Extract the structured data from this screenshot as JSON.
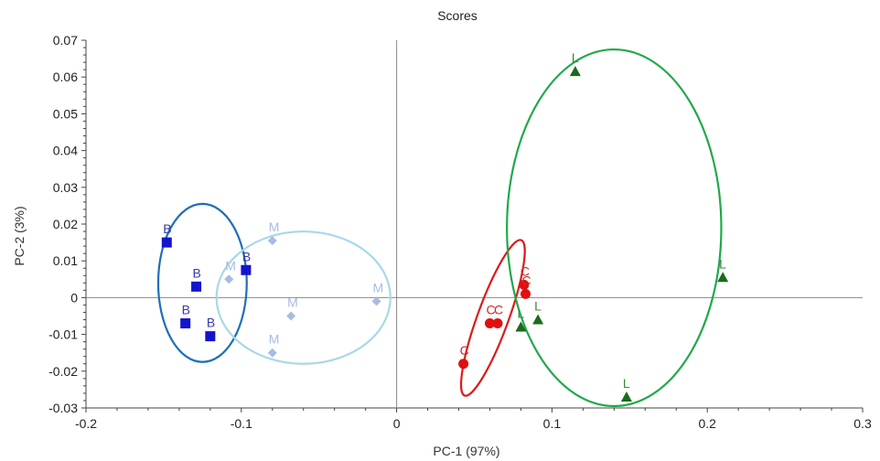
{
  "chart_data": {
    "type": "scatter",
    "title": "Scores",
    "xlabel": "PC-1 (97%)",
    "ylabel": "PC-2 (3%)",
    "xlim": [
      -0.2,
      0.3
    ],
    "ylim": [
      -0.03,
      0.07
    ],
    "x_ticks": [
      "-0.2",
      "-0.1",
      "0",
      "0.1",
      "0.2",
      "0.3"
    ],
    "y_ticks": [
      "-0.03",
      "-0.02",
      "-0.01",
      "0",
      "0.01",
      "0.02",
      "0.03",
      "0.04",
      "0.05",
      "0.06",
      "0.07"
    ],
    "x_tick_values": [
      -0.2,
      -0.1,
      0,
      0.1,
      0.2,
      0.3
    ],
    "y_tick_values": [
      -0.03,
      -0.02,
      -0.01,
      0,
      0.01,
      0.02,
      0.03,
      0.04,
      0.05,
      0.06,
      0.07
    ],
    "zero_lines": true,
    "grid": false,
    "series": [
      {
        "label": "B",
        "color": "#1414cc",
        "label_color": "#3a3aa8",
        "marker": "square",
        "points": [
          {
            "x": -0.148,
            "y": 0.015
          },
          {
            "x": -0.129,
            "y": 0.003
          },
          {
            "x": -0.097,
            "y": 0.0075
          },
          {
            "x": -0.136,
            "y": -0.007
          },
          {
            "x": -0.12,
            "y": -0.0105
          }
        ],
        "ellipse": {
          "cx": -0.125,
          "cy": 0.004,
          "rx": 0.0285,
          "ry": 0.0215,
          "color": "#1f6fb5"
        }
      },
      {
        "label": "M",
        "color": "#a7bce0",
        "label_color": "#a7bce0",
        "marker": "diamond",
        "points": [
          {
            "x": -0.08,
            "y": 0.0155
          },
          {
            "x": -0.108,
            "y": 0.005
          },
          {
            "x": -0.068,
            "y": -0.005
          },
          {
            "x": -0.08,
            "y": -0.015
          },
          {
            "x": -0.013,
            "y": -0.001
          }
        ],
        "ellipse": {
          "cx": -0.06,
          "cy": 0.0,
          "rx": 0.056,
          "ry": 0.018,
          "color": "#a8d8e8"
        }
      },
      {
        "label": "C",
        "color": "#e01010",
        "label_color": "#cc2a2a",
        "marker": "circle",
        "points": [
          {
            "x": 0.043,
            "y": -0.018
          },
          {
            "x": 0.06,
            "y": -0.007
          },
          {
            "x": 0.065,
            "y": -0.007
          },
          {
            "x": 0.082,
            "y": 0.0035
          },
          {
            "x": 0.083,
            "y": 0.001
          }
        ],
        "ellipse": {
          "cx": 0.062,
          "cy": -0.0055,
          "rx": 0.01,
          "ry": 0.0225,
          "rotate": 20,
          "color": "#dd1a1a"
        }
      },
      {
        "label": "L",
        "color": "#1a6b1a",
        "label_color": "#3a8a3a",
        "marker": "triangle",
        "points": [
          {
            "x": 0.115,
            "y": 0.0615
          },
          {
            "x": 0.21,
            "y": 0.0055
          },
          {
            "x": 0.08,
            "y": -0.008
          },
          {
            "x": 0.091,
            "y": -0.006
          },
          {
            "x": 0.148,
            "y": -0.027
          }
        ],
        "ellipse": {
          "cx": 0.14,
          "cy": 0.019,
          "rx": 0.069,
          "ry": 0.0485,
          "color": "#22a84a"
        }
      }
    ]
  }
}
